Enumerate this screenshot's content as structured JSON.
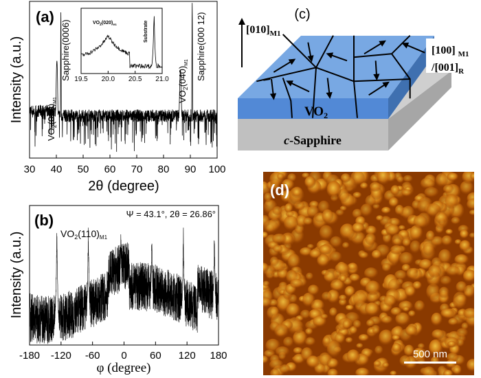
{
  "panels": {
    "a": "(a)",
    "b": "(b)",
    "c": "(c)",
    "d": "(d)"
  },
  "chart_data": [
    {
      "type": "line",
      "panel": "a",
      "xlabel": "2θ (degree)",
      "ylabel": "Intensity (a.u.)",
      "xlim": [
        30,
        100
      ],
      "yscale": "log",
      "xticks": [
        "30",
        "40",
        "50",
        "60",
        "70",
        "80",
        "90",
        "100"
      ],
      "peaks": [
        {
          "x": 40.2,
          "label": "VO2(020)M1"
        },
        {
          "x": 41.7,
          "label": "Sapphire(0006)"
        },
        {
          "x": 86.3,
          "label": "VO2(040)M1"
        },
        {
          "x": 90.7,
          "label": "Sapphire(000 12)"
        }
      ],
      "inset": {
        "xlim": [
          19.5,
          21.0
        ],
        "xticks": [
          "19.5",
          "20.0",
          "20.5",
          "21.0"
        ],
        "peaks": [
          {
            "x": 20.0,
            "label": "VO2(020)M1"
          },
          {
            "x": 20.85,
            "label": "Substrate"
          }
        ]
      }
    },
    {
      "type": "line",
      "panel": "b",
      "xlabel": "φ (degree)",
      "ylabel": "Intensity (a.u.)",
      "xlim": [
        -180,
        180
      ],
      "xticks": [
        "-180",
        "-120",
        "-60",
        "0",
        "60",
        "120",
        "180"
      ],
      "annotation": "Ψ = 43.1°, 2θ = 26.86°",
      "peak_label": "VO2(110)M1",
      "peaks": [
        -128,
        -68,
        -6,
        53,
        113,
        172
      ]
    }
  ],
  "diagram": {
    "axis_up": "[010]",
    "axis_up_sub": "M1",
    "axis_in1": "[100]",
    "axis_in1_sub": "M1",
    "axis_in2": "/[001]",
    "axis_in2_sub": "R",
    "film": "VO",
    "film_sub": "2",
    "substrate_italic": "c",
    "substrate": "-Sapphire"
  },
  "afm": {
    "scale_bar": "500 nm",
    "colors": [
      "#8a3a00",
      "#c87010",
      "#f0c040"
    ]
  }
}
